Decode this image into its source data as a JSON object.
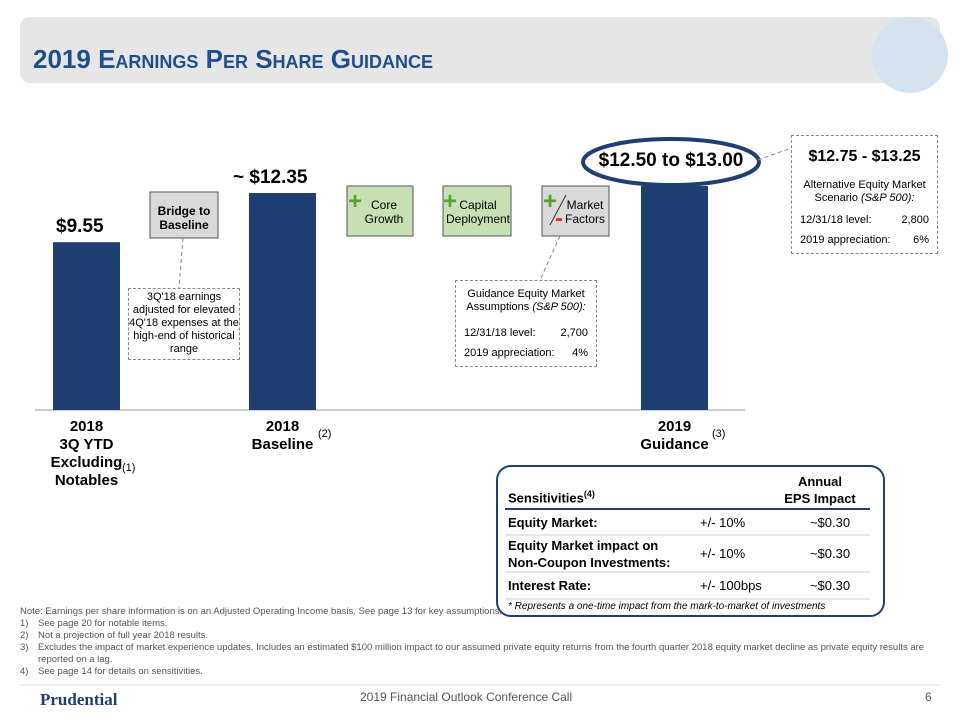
{
  "header": {
    "title": "2019 Earnings Per Share Guidance"
  },
  "chart_data": {
    "type": "bar",
    "categories": [
      "2018\n3Q YTD\nExcluding\nNotables",
      "2018\nBaseline",
      "2019\nGuidance"
    ],
    "category_notes": [
      "(1)",
      "(2)",
      "(3)"
    ],
    "values": [
      9.55,
      12.35,
      12.75
    ],
    "value_labels": [
      "$9.55",
      "~ $12.35",
      null
    ],
    "guidance_label": "$12.50 to $13.00",
    "color": "#1f3f73",
    "ylim": [
      0,
      15
    ]
  },
  "bridge": {
    "baseline_box": "Bridge to\nBaseline",
    "baseline_note": "3Q'18 earnings adjusted for elevated 4Q'18 expenses at the high-end of historical range",
    "core_growth": "Core\nGrowth",
    "capital_deployment": "Capital\nDeployment",
    "market_factors": "Market\nFactors"
  },
  "guidance_assumptions": {
    "title": "Guidance Equity Market Assumptions",
    "title_note": "(S&P 500):",
    "rows": [
      [
        "12/31/18 level:",
        "2,700"
      ],
      [
        "2019 appreciation:",
        "4%"
      ]
    ]
  },
  "alternative": {
    "range": "$12.75 - $13.25",
    "title": "Alternative Equity Market Scenario",
    "title_note": "(S&P 500):",
    "rows": [
      [
        "12/31/18 level:",
        "2,800"
      ],
      [
        "2019 appreciation:",
        "6%"
      ]
    ]
  },
  "sensitivities": {
    "header": [
      "Sensitivities",
      "(4)",
      "Annual\nEPS Impact"
    ],
    "rows": [
      [
        "Equity Market:",
        "+/- 10%",
        "~$0.30"
      ],
      [
        "Equity Market impact on\nNon-Coupon Investments:",
        "+/- 10%",
        "~$0.30"
      ],
      [
        "Interest Rate:",
        "+/- 100bps",
        "~$0.30"
      ]
    ],
    "footnote": "*  Represents a one-time impact from the mark-to-market of investments"
  },
  "notes": {
    "intro": "Note: Earnings per share information is on an Adjusted Operating Income basis.  See page 13 for key assumptions.",
    "items": [
      [
        "1)",
        "See page 20 for notable items."
      ],
      [
        "2)",
        "Not a projection of full year 2018 results."
      ],
      [
        "3)",
        "Excludes the impact of market experience updates.  Includes an estimated $100 million impact to our assumed private equity returns from the fourth quarter 2018 equity market decline as private equity results are reported on a lag."
      ],
      [
        "4)",
        "See page 14 for details on sensitivities."
      ]
    ]
  },
  "footer": {
    "logo": "Prudential",
    "event": "2019 Financial Outlook Conference Call",
    "page": "6"
  }
}
